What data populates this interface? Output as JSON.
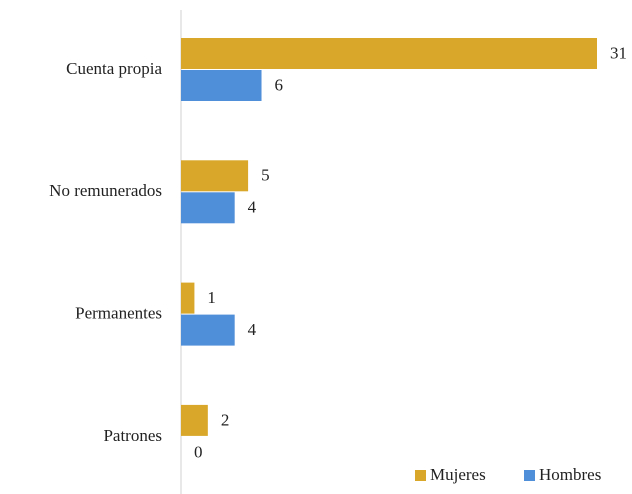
{
  "chart_data": {
    "type": "bar",
    "orientation": "horizontal",
    "categories": [
      "Cuenta propia",
      "No remunerados",
      "Permanentes",
      "Patrones"
    ],
    "series": [
      {
        "name": "Mujeres",
        "color": "#d9a82a",
        "values": [
          31,
          5,
          1,
          2
        ]
      },
      {
        "name": "Hombres",
        "color": "#4f8ed8",
        "values": [
          6,
          4,
          4,
          0
        ]
      }
    ],
    "legend": "bottom-right"
  }
}
